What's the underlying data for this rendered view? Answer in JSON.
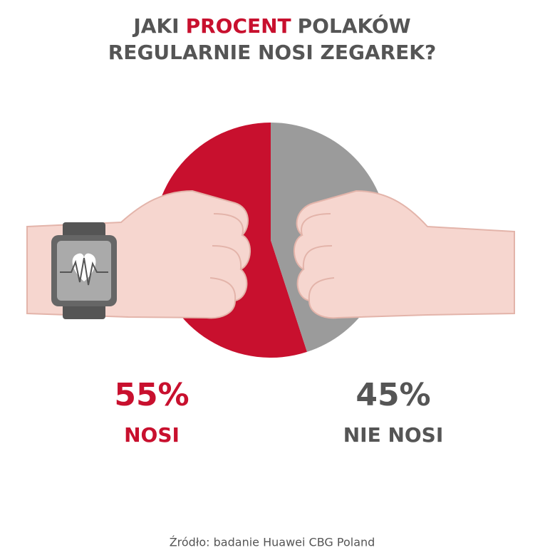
{
  "chart_data": {
    "type": "pie",
    "title": {
      "line1": [
        "JAKI",
        "PROCENT",
        "POLAKÓW"
      ],
      "line2": "REGULARNIE NOSI ZEGAREK?"
    },
    "categories": [
      "NOSI",
      "NIE NOSI"
    ],
    "values": [
      55,
      45
    ],
    "value_labels": [
      "55%",
      "45%"
    ],
    "colors": [
      "#c8102e",
      "#9b9b9b"
    ],
    "source": "Źródło: badanie Huawei CBG Poland"
  }
}
